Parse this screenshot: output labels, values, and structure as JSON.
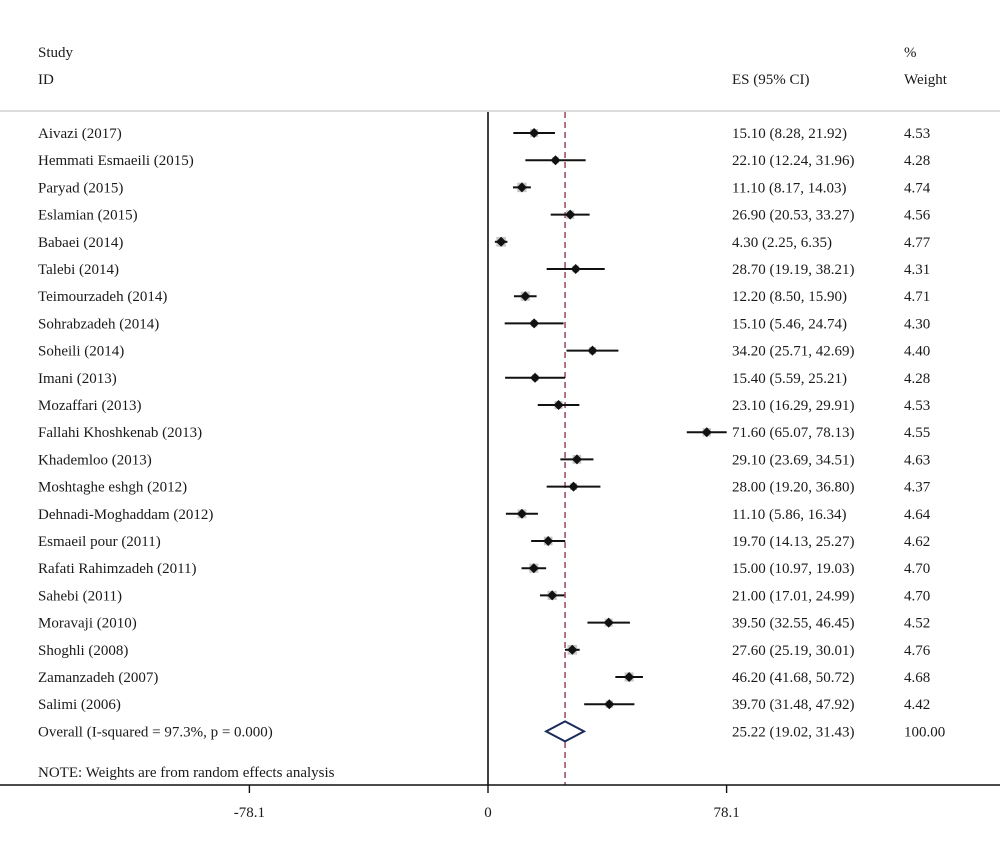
{
  "header": {
    "study_line1": "Study",
    "study_line2": "ID",
    "es_label": "ES (95% CI)",
    "weight_line1": "%",
    "weight_line2": "Weight"
  },
  "chart_data": {
    "type": "forest",
    "x_ticks": [
      {
        "value": -78.1,
        "label": "-78.1"
      },
      {
        "value": 0,
        "label": "0"
      },
      {
        "value": 78.1,
        "label": "78.1"
      }
    ],
    "studies": [
      {
        "label": "Aivazi (2017)",
        "es": 15.1,
        "lo": 8.28,
        "hi": 21.92,
        "ci_text": "15.10 (8.28, 21.92)",
        "weight": 4.53,
        "weight_text": "4.53"
      },
      {
        "label": "Hemmati Esmaeili (2015)",
        "es": 22.1,
        "lo": 12.24,
        "hi": 31.96,
        "ci_text": "22.10 (12.24, 31.96)",
        "weight": 4.28,
        "weight_text": "4.28"
      },
      {
        "label": "Paryad (2015)",
        "es": 11.1,
        "lo": 8.17,
        "hi": 14.03,
        "ci_text": "11.10 (8.17, 14.03)",
        "weight": 4.74,
        "weight_text": "4.74"
      },
      {
        "label": "Eslamian (2015)",
        "es": 26.9,
        "lo": 20.53,
        "hi": 33.27,
        "ci_text": "26.90 (20.53, 33.27)",
        "weight": 4.56,
        "weight_text": "4.56"
      },
      {
        "label": "Babaei (2014)",
        "es": 4.3,
        "lo": 2.25,
        "hi": 6.35,
        "ci_text": "4.30 (2.25, 6.35)",
        "weight": 4.77,
        "weight_text": "4.77"
      },
      {
        "label": "Talebi (2014)",
        "es": 28.7,
        "lo": 19.19,
        "hi": 38.21,
        "ci_text": "28.70 (19.19, 38.21)",
        "weight": 4.31,
        "weight_text": "4.31"
      },
      {
        "label": "Teimourzadeh (2014)",
        "es": 12.2,
        "lo": 8.5,
        "hi": 15.9,
        "ci_text": "12.20 (8.50, 15.90)",
        "weight": 4.71,
        "weight_text": "4.71"
      },
      {
        "label": "Sohrabzadeh (2014)",
        "es": 15.1,
        "lo": 5.46,
        "hi": 24.74,
        "ci_text": "15.10 (5.46, 24.74)",
        "weight": 4.3,
        "weight_text": "4.30"
      },
      {
        "label": "Soheili (2014)",
        "es": 34.2,
        "lo": 25.71,
        "hi": 42.69,
        "ci_text": "34.20 (25.71, 42.69)",
        "weight": 4.4,
        "weight_text": "4.40"
      },
      {
        "label": "Imani (2013)",
        "es": 15.4,
        "lo": 5.59,
        "hi": 25.21,
        "ci_text": "15.40 (5.59, 25.21)",
        "weight": 4.28,
        "weight_text": "4.28"
      },
      {
        "label": "Mozaffari (2013)",
        "es": 23.1,
        "lo": 16.29,
        "hi": 29.91,
        "ci_text": "23.10 (16.29, 29.91)",
        "weight": 4.53,
        "weight_text": "4.53"
      },
      {
        "label": "Fallahi Khoshkenab (2013)",
        "es": 71.6,
        "lo": 65.07,
        "hi": 78.13,
        "ci_text": "71.60 (65.07, 78.13)",
        "weight": 4.55,
        "weight_text": "4.55"
      },
      {
        "label": "Khademloo (2013)",
        "es": 29.1,
        "lo": 23.69,
        "hi": 34.51,
        "ci_text": "29.10 (23.69, 34.51)",
        "weight": 4.63,
        "weight_text": "4.63"
      },
      {
        "label": "Moshtaghe eshgh (2012)",
        "es": 28.0,
        "lo": 19.2,
        "hi": 36.8,
        "ci_text": "28.00 (19.20, 36.80)",
        "weight": 4.37,
        "weight_text": "4.37"
      },
      {
        "label": "Dehnadi-Moghaddam (2012)",
        "es": 11.1,
        "lo": 5.86,
        "hi": 16.34,
        "ci_text": "11.10 (5.86, 16.34)",
        "weight": 4.64,
        "weight_text": "4.64"
      },
      {
        "label": "Esmaeil pour (2011)",
        "es": 19.7,
        "lo": 14.13,
        "hi": 25.27,
        "ci_text": "19.70 (14.13, 25.27)",
        "weight": 4.62,
        "weight_text": "4.62"
      },
      {
        "label": "Rafati Rahimzadeh (2011)",
        "es": 15.0,
        "lo": 10.97,
        "hi": 19.03,
        "ci_text": "15.00 (10.97, 19.03)",
        "weight": 4.7,
        "weight_text": "4.70"
      },
      {
        "label": "Sahebi (2011)",
        "es": 21.0,
        "lo": 17.01,
        "hi": 24.99,
        "ci_text": "21.00 (17.01, 24.99)",
        "weight": 4.7,
        "weight_text": "4.70"
      },
      {
        "label": "Moravaji (2010)",
        "es": 39.5,
        "lo": 32.55,
        "hi": 46.45,
        "ci_text": "39.50 (32.55, 46.45)",
        "weight": 4.52,
        "weight_text": "4.52"
      },
      {
        "label": "Shoghli (2008)",
        "es": 27.6,
        "lo": 25.19,
        "hi": 30.01,
        "ci_text": "27.60 (25.19, 30.01)",
        "weight": 4.76,
        "weight_text": "4.76"
      },
      {
        "label": "Zamanzadeh (2007)",
        "es": 46.2,
        "lo": 41.68,
        "hi": 50.72,
        "ci_text": "46.20 (41.68, 50.72)",
        "weight": 4.68,
        "weight_text": "4.68"
      },
      {
        "label": "Salimi (2006)",
        "es": 39.7,
        "lo": 31.48,
        "hi": 47.92,
        "ci_text": "39.70 (31.48, 47.92)",
        "weight": 4.42,
        "weight_text": "4.42"
      }
    ],
    "overall": {
      "label": "Overall  (I-squared = 97.3%, p = 0.000)",
      "es": 25.22,
      "lo": 19.02,
      "hi": 31.43,
      "ci_text": "25.22 (19.02, 31.43)",
      "weight_text": "100.00"
    },
    "note": "NOTE: Weights are from random effects analysis",
    "colors": {
      "ci_line": "#111111",
      "point": "#111111",
      "weight_box": "#c8c8c8",
      "overall_diamond": "#1a2a5a",
      "overall_line": "#8b2a3a"
    }
  }
}
